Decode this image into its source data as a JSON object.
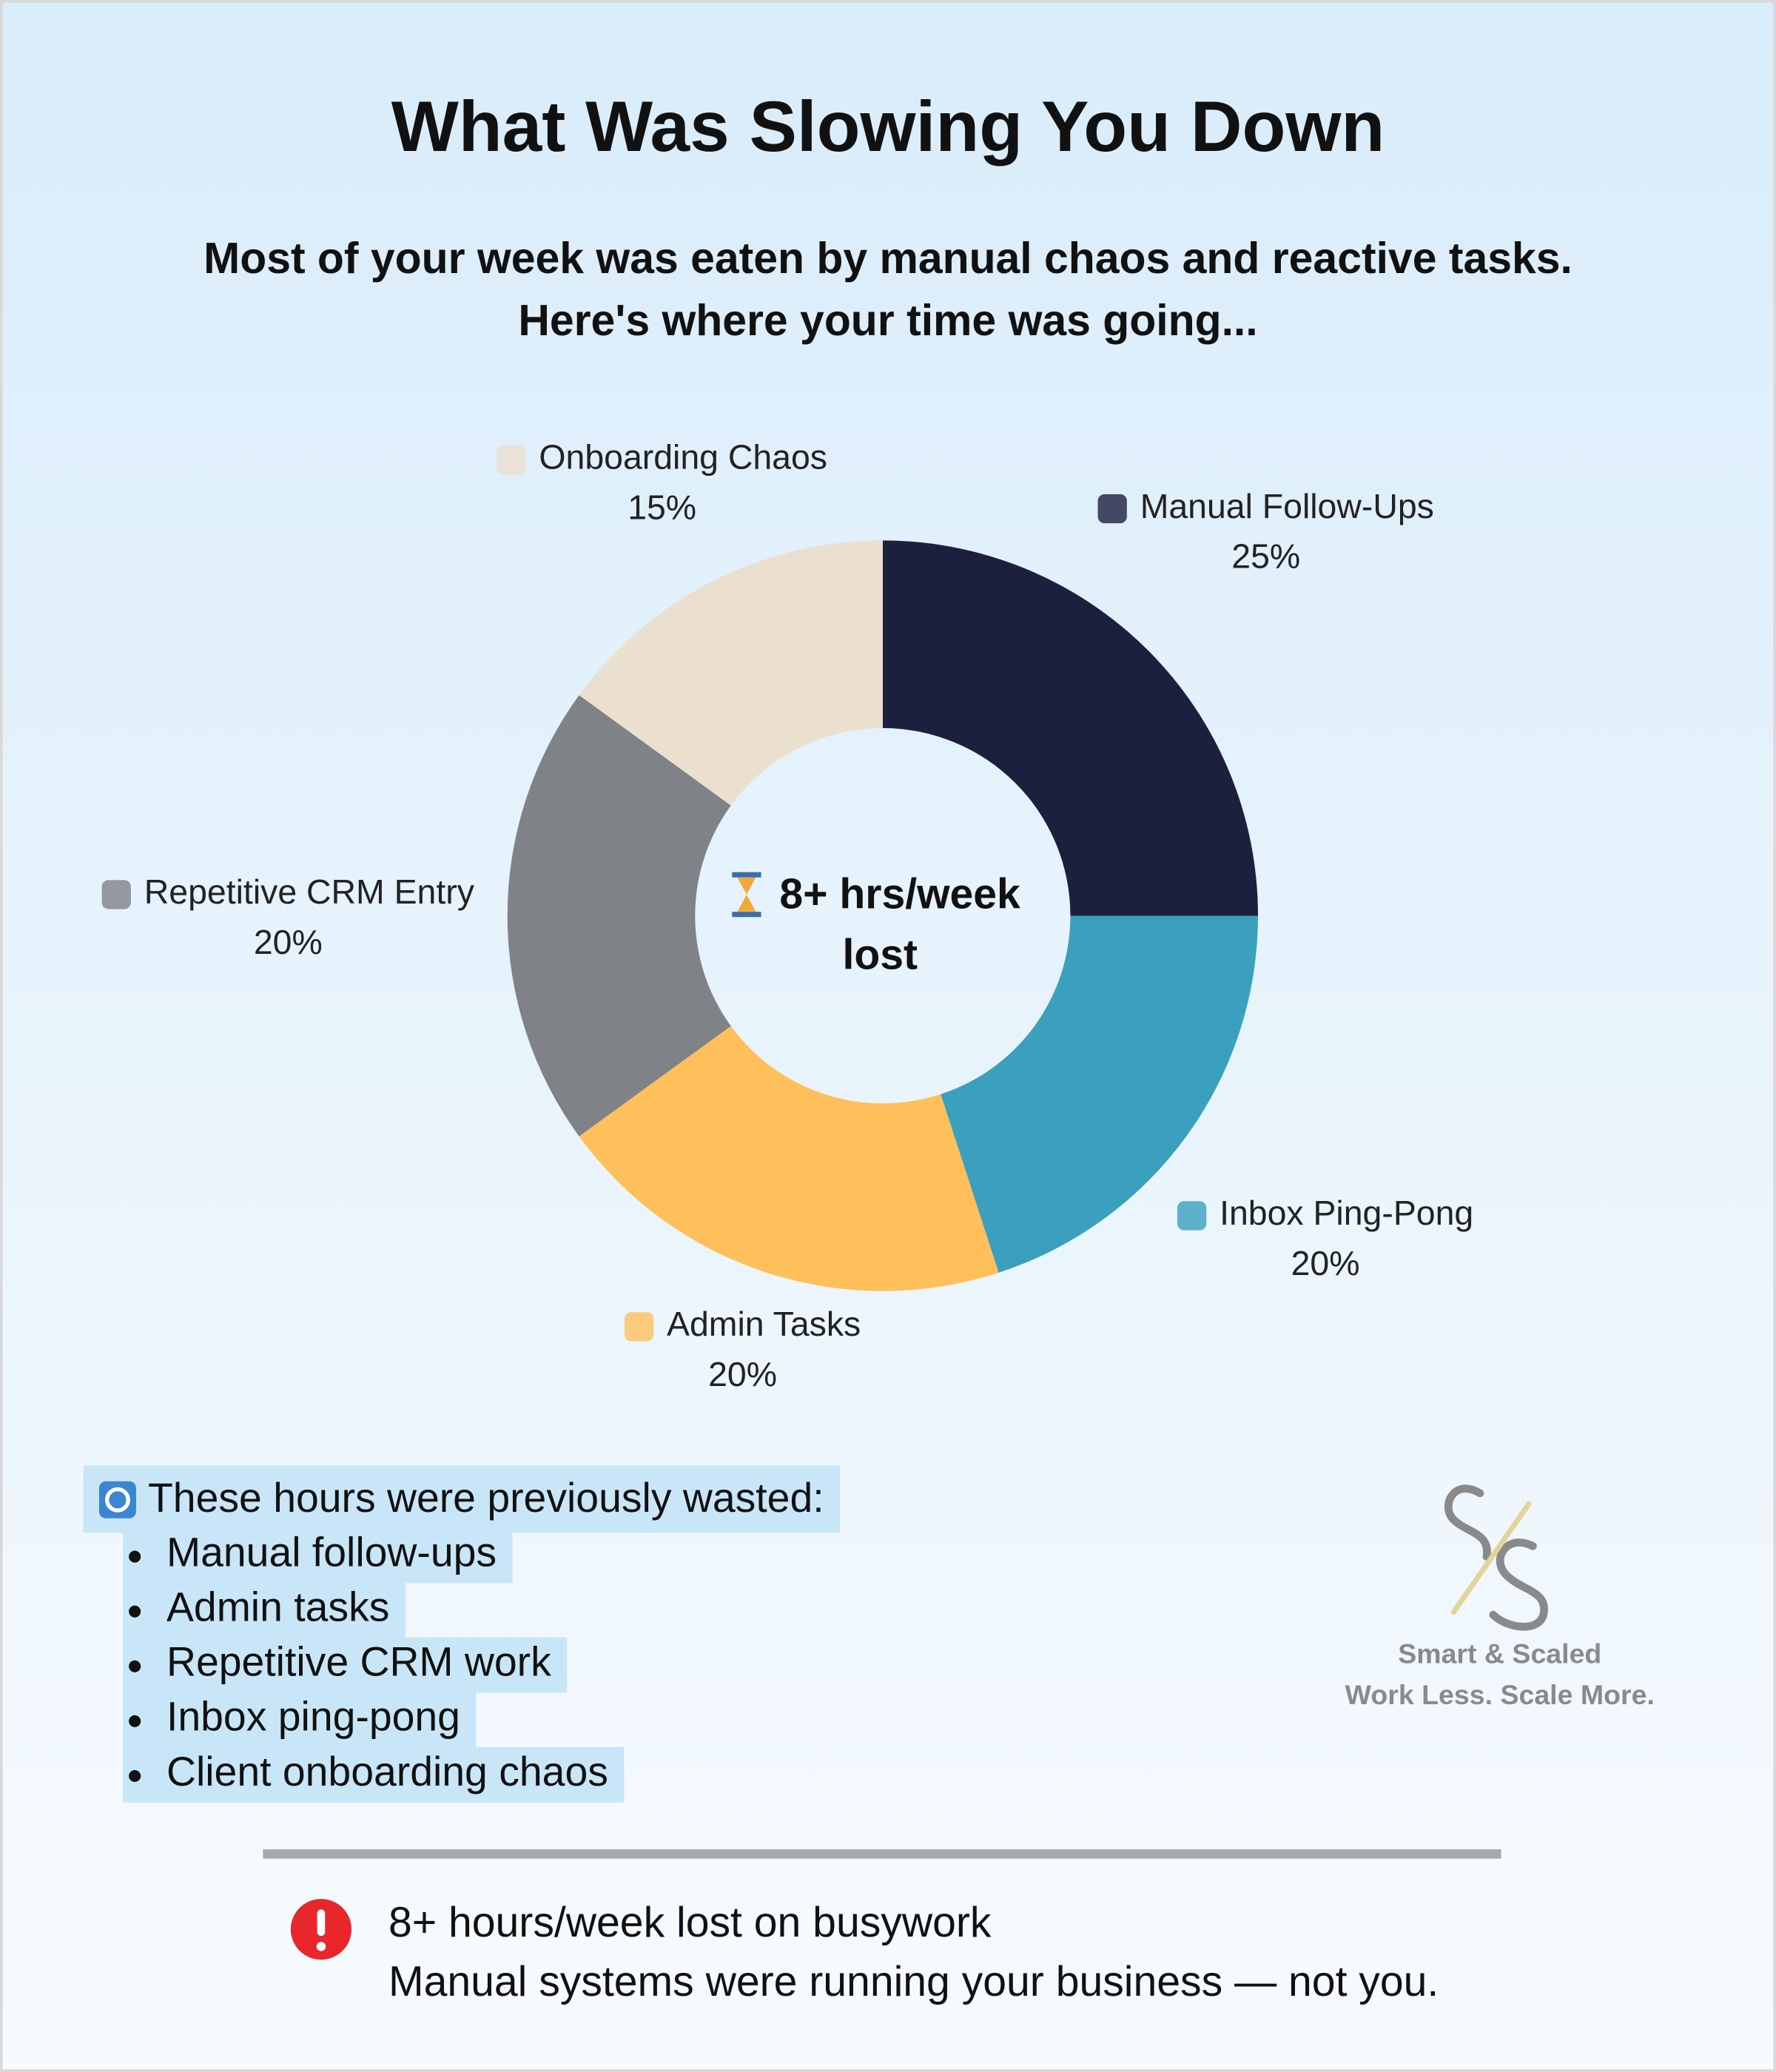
{
  "chart_data": {
    "type": "pie",
    "title": "What Was Slowing You Down",
    "subtitle": [
      "Most of your week was eaten by manual chaos and reactive tasks.",
      "Here's where your time was going..."
    ],
    "categories": [
      "Manual Follow-Ups",
      "Inbox Ping-Pong",
      "Admin Tasks",
      "Repetitive CRM Entry",
      "Onboarding Chaos"
    ],
    "values": [
      25,
      20,
      20,
      20,
      15
    ],
    "value_labels": [
      "25%",
      "20%",
      "20%",
      "20%",
      "15%"
    ],
    "colors": [
      "#1c1f3d",
      "#3aa0bd",
      "#ffbf5a",
      "#7f8287",
      "#ebdfcf"
    ],
    "center_label": [
      "8+ hrs/week",
      "lost"
    ]
  },
  "notes": {
    "heading": "These hours were previously wasted:",
    "items": [
      "Manual follow-ups",
      "Admin tasks",
      "Repetitive CRM work",
      "Inbox ping-pong",
      "Client onboarding chaos"
    ]
  },
  "brand": {
    "name": "Smart & Scaled",
    "tagline": "Work Less. Scale More."
  },
  "alert": {
    "lines": [
      "8+ hours/week lost on busywork",
      "Manual systems were running your business — not you."
    ]
  }
}
